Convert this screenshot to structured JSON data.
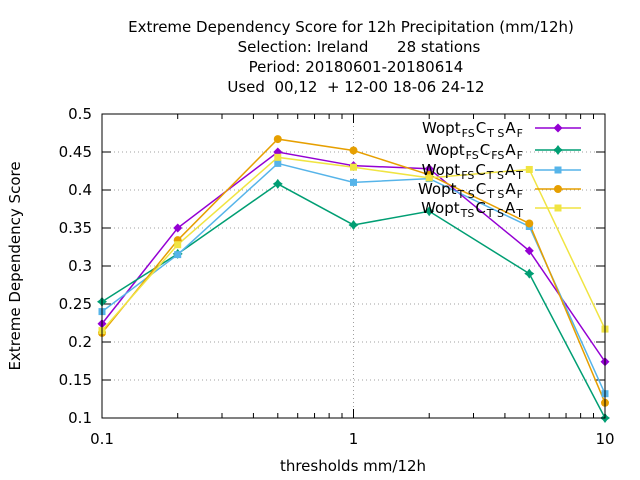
{
  "chart_data": {
    "type": "line",
    "title_lines": [
      "Extreme Dependency Score  for 12h Precipitation (mm/12h)",
      "Selection: Ireland      28 stations",
      "Period: 20180601-20180614",
      "Used  00,12  + 12-00 18-06 24-12"
    ],
    "xlabel": "thresholds mm/12h",
    "ylabel": "Extreme Dependency Score",
    "x_scale": "log",
    "xlim": [
      0.1,
      10
    ],
    "ylim": [
      0.1,
      0.5
    ],
    "x_ticks": [
      {
        "value": 0.1,
        "label": "0.1"
      },
      {
        "value": 1,
        "label": "1"
      },
      {
        "value": 10,
        "label": "10"
      }
    ],
    "y_ticks": [
      {
        "value": 0.1,
        "label": "0.1"
      },
      {
        "value": 0.15,
        "label": "0.15"
      },
      {
        "value": 0.2,
        "label": "0.2"
      },
      {
        "value": 0.25,
        "label": "0.25"
      },
      {
        "value": 0.3,
        "label": "0.3"
      },
      {
        "value": 0.35,
        "label": "0.35"
      },
      {
        "value": 0.4,
        "label": "0.4"
      },
      {
        "value": 0.45,
        "label": "0.45"
      },
      {
        "value": 0.5,
        "label": "0.5"
      }
    ],
    "legend_position": "top-right",
    "x": [
      0.1,
      0.2,
      0.5,
      1,
      2,
      5,
      10
    ],
    "series": [
      {
        "name": "Wopt FS C TS A F",
        "name_parts": [
          [
            "Wopt",
            ""
          ],
          [
            "FS",
            "sub"
          ],
          [
            "C",
            ""
          ],
          [
            "T S",
            "sub"
          ],
          [
            "A",
            ""
          ],
          [
            "F",
            "sub"
          ]
        ],
        "color": "#9400d3",
        "marker": "diamond",
        "values": [
          0.224,
          0.35,
          0.45,
          0.432,
          0.428,
          0.32,
          0.174
        ]
      },
      {
        "name": "Wopt FS C FS A F",
        "name_parts": [
          [
            "Wopt",
            ""
          ],
          [
            "FS",
            "sub"
          ],
          [
            "C",
            ""
          ],
          [
            "FS",
            "sub"
          ],
          [
            "A",
            ""
          ],
          [
            "F",
            "sub"
          ]
        ],
        "color": "#009e73",
        "marker": "star",
        "values": [
          0.253,
          0.316,
          0.408,
          0.354,
          0.372,
          0.29,
          0.1
        ]
      },
      {
        "name": "Wopt FS C TS A T",
        "name_parts": [
          [
            "Wopt",
            ""
          ],
          [
            "FS",
            "sub"
          ],
          [
            "C",
            ""
          ],
          [
            "T S",
            "sub"
          ],
          [
            "A",
            ""
          ],
          [
            "T",
            "sub"
          ]
        ],
        "color": "#56b4e9",
        "marker": "square",
        "values": [
          0.24,
          0.315,
          0.435,
          0.41,
          0.415,
          0.352,
          0.132
        ]
      },
      {
        "name": "Wopt TS C TS A F",
        "name_parts": [
          [
            "Wopt",
            ""
          ],
          [
            "T S",
            "sub"
          ],
          [
            "C",
            ""
          ],
          [
            "T S",
            "sub"
          ],
          [
            "A",
            ""
          ],
          [
            "F",
            "sub"
          ]
        ],
        "color": "#e69f00",
        "marker": "circle",
        "values": [
          0.212,
          0.334,
          0.467,
          0.452,
          0.42,
          0.356,
          0.12
        ]
      },
      {
        "name": "Wopt TS C TS A T",
        "name_parts": [
          [
            "Wopt",
            ""
          ],
          [
            "TS",
            "sub"
          ],
          [
            "C",
            ""
          ],
          [
            "T S",
            "sub"
          ],
          [
            "A",
            ""
          ],
          [
            "T",
            "sub"
          ]
        ],
        "color": "#f0e442",
        "marker": "square",
        "values": [
          0.215,
          0.328,
          0.443,
          0.43,
          0.416,
          0.427,
          0.217
        ]
      }
    ]
  }
}
